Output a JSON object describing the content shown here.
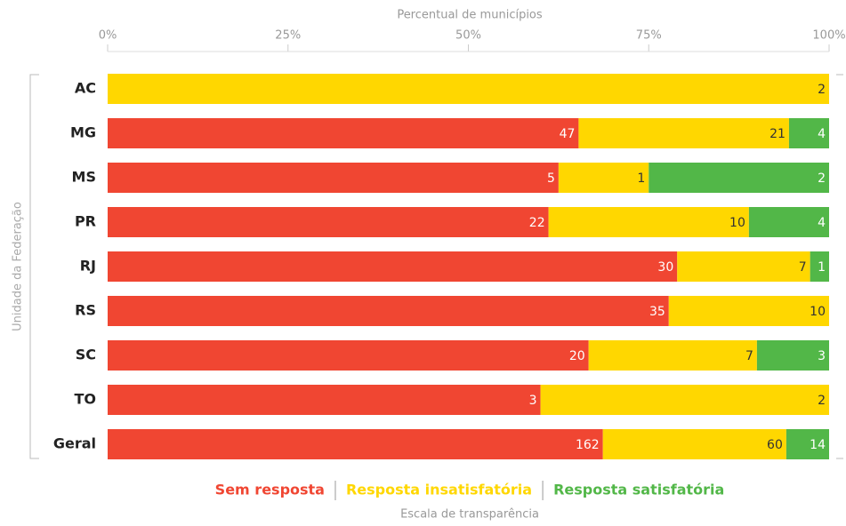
{
  "chart_data": {
    "type": "bar",
    "orientation": "horizontal",
    "stacking": "percent",
    "x_label": "Percentual de municípios",
    "y_label": "Unidade da Federação",
    "legend_title": "Escala de transparência",
    "categories": [
      "AC",
      "MG",
      "MS",
      "PR",
      "RJ",
      "RS",
      "SC",
      "TO",
      "Geral"
    ],
    "series": [
      {
        "name": "Sem resposta",
        "color": "#f04632",
        "label_color": "#ffffff",
        "values": [
          null,
          47,
          5,
          22,
          30,
          35,
          20,
          3,
          162
        ]
      },
      {
        "name": "Resposta insatisfatória",
        "color": "#ffd700",
        "label_color": "#333333",
        "values": [
          2,
          21,
          1,
          10,
          7,
          10,
          7,
          2,
          60
        ]
      },
      {
        "name": "Resposta satisfatória",
        "color": "#52b748",
        "label_color": "#ffffff",
        "values": [
          null,
          4,
          2,
          4,
          1,
          null,
          3,
          null,
          14
        ]
      }
    ],
    "xlim": [
      0,
      100
    ],
    "xticks": [
      {
        "value": 0,
        "label": "0%"
      },
      {
        "value": 25,
        "label": "25%"
      },
      {
        "value": 50,
        "label": "50%"
      },
      {
        "value": 75,
        "label": "75%"
      },
      {
        "value": 100,
        "label": "100%"
      }
    ],
    "legend": "bottom"
  }
}
